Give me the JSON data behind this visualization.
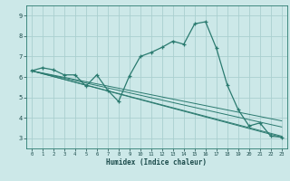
{
  "xlabel": "Humidex (Indice chaleur)",
  "bg_color": "#cce8e8",
  "grid_color": "#aacfcf",
  "line_color": "#2a7a6f",
  "xlim": [
    -0.5,
    23.5
  ],
  "ylim": [
    2.5,
    9.5
  ],
  "yticks": [
    3,
    4,
    5,
    6,
    7,
    8,
    9
  ],
  "xticks": [
    0,
    1,
    2,
    3,
    4,
    5,
    6,
    7,
    8,
    9,
    10,
    11,
    12,
    13,
    14,
    15,
    16,
    17,
    18,
    19,
    20,
    21,
    22,
    23
  ],
  "line1_x": [
    0,
    1,
    2,
    3,
    4,
    5,
    6,
    7,
    8,
    9,
    10,
    11,
    12,
    13,
    14,
    15,
    16,
    17,
    18,
    19,
    20,
    21,
    22,
    23
  ],
  "line1_y": [
    6.3,
    6.45,
    6.35,
    6.1,
    6.1,
    5.55,
    6.1,
    5.35,
    4.8,
    6.05,
    7.0,
    7.2,
    7.45,
    7.75,
    7.6,
    8.6,
    8.7,
    7.4,
    5.6,
    4.4,
    3.6,
    3.75,
    3.1,
    3.05
  ],
  "line2_y_end": 3.05,
  "line3_y_end": 3.1,
  "line4_y_end": 3.55,
  "line5_y_end": 3.85,
  "line_start_y": 6.3,
  "line_start_x": 0,
  "line_end_x": 23
}
